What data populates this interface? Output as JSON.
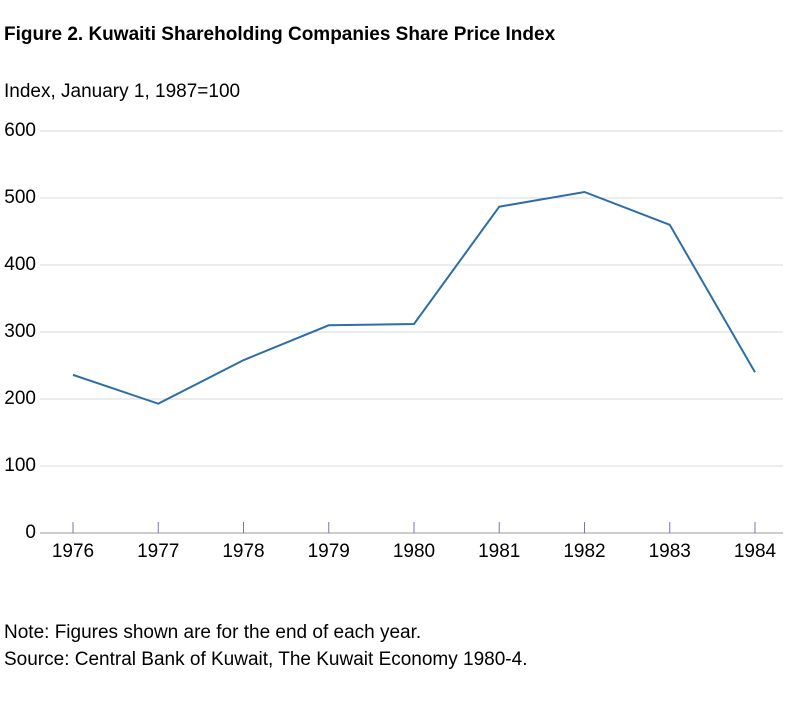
{
  "chart_data": {
    "type": "line",
    "title": "Figure 2. Kuwaiti Shareholding Companies Share Price Index",
    "subtitle": "Index, January 1, 1987=100",
    "categories": [
      "1976",
      "1977",
      "1978",
      "1979",
      "1980",
      "1981",
      "1982",
      "1983",
      "1984"
    ],
    "series": [
      {
        "name": "Share Price Index",
        "color": "#2e6ea6",
        "values": [
          236,
          193,
          258,
          310,
          312,
          487,
          509,
          460,
          240
        ]
      }
    ],
    "ylim": [
      0,
      600
    ],
    "yticks": [
      0,
      100,
      200,
      300,
      400,
      500,
      600
    ],
    "grid": true,
    "notes": [
      "Note: Figures shown are for the end of each year.",
      "Source: Central Bank of Kuwait, The Kuwait Economy 1980-4."
    ]
  }
}
